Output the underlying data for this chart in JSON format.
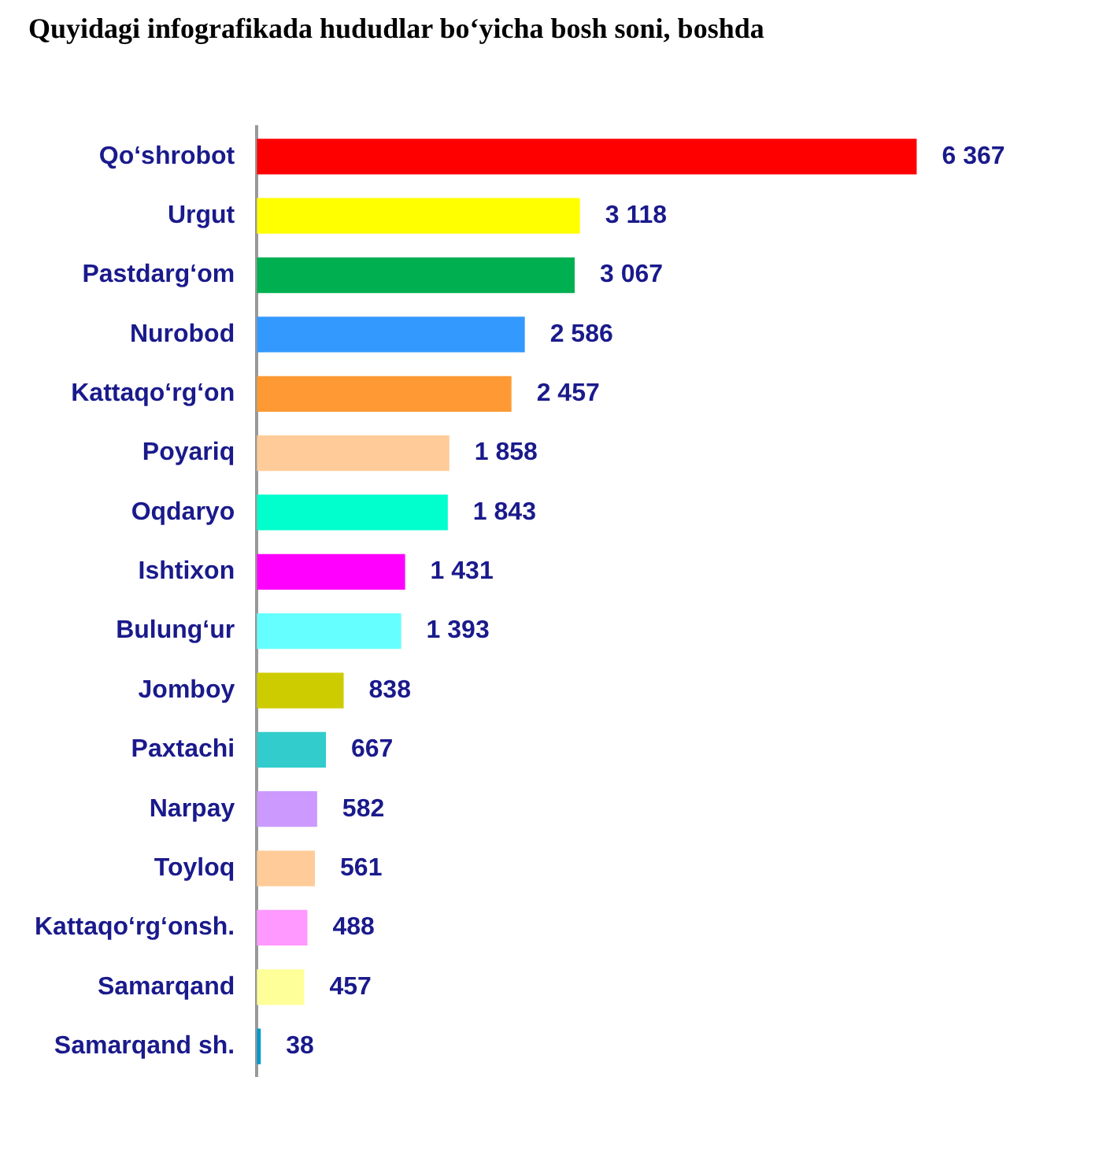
{
  "chart_data": {
    "type": "bar",
    "orientation": "horizontal",
    "title": "Quyidagi infografikada hududlar bo‘yicha bosh soni, boshda",
    "categories": [
      "Qo‘shrobot",
      "Urgut",
      "Pastdarg‘om",
      "Nurobod",
      "Kattaqo‘rg‘on",
      "Poyariq",
      "Oqdaryo",
      "Ishtixon",
      "Bulung‘ur",
      "Jomboy",
      "Paxtachi",
      "Narpay",
      "Toyloq",
      "Kattaqo‘rg‘onsh.",
      "Samarqand",
      "Samarqand sh."
    ],
    "values": [
      6367,
      3118,
      3067,
      2586,
      2457,
      1858,
      1843,
      1431,
      1393,
      838,
      667,
      582,
      561,
      488,
      457,
      38
    ],
    "value_labels": [
      "6 367",
      "3 118",
      "3 067",
      "2 586",
      "2 457",
      "1 858",
      "1 843",
      "1 431",
      "1 393",
      "838",
      "667",
      "582",
      "561",
      "488",
      "457",
      "38"
    ],
    "colors": [
      "#ff0000",
      "#ffff00",
      "#00b050",
      "#3399ff",
      "#ff9933",
      "#ffcc99",
      "#00ffcc",
      "#ff00ff",
      "#66ffff",
      "#cccc00",
      "#33cccc",
      "#cc99ff",
      "#ffcc99",
      "#ff99ff",
      "#ffff99",
      "#0099cc"
    ],
    "tick_labels": "y",
    "grid": false,
    "legend": false
  }
}
